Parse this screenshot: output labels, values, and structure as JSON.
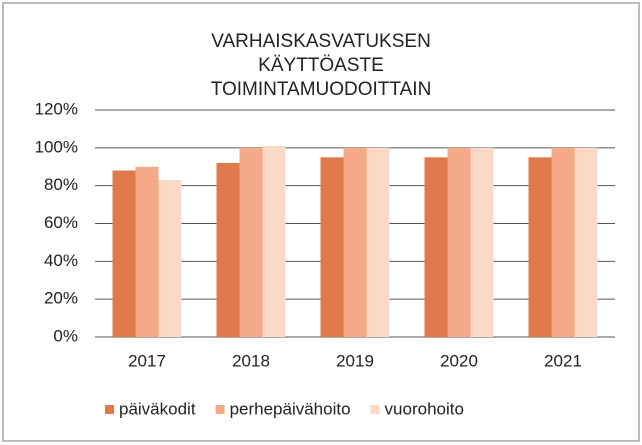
{
  "chart_data": {
    "type": "bar",
    "title": "VARHAISKASVATUKSEN KÄYTTÖASTE TOIMINTAMUODOITTAIN",
    "categories": [
      "2017",
      "2018",
      "2019",
      "2020",
      "2021"
    ],
    "series": [
      {
        "name": "päiväkodit",
        "color": "#e07a4c",
        "values": [
          88,
          92,
          95,
          95,
          95
        ]
      },
      {
        "name": "perhepäivähoito",
        "color": "#f4a988",
        "values": [
          90,
          100,
          100,
          100,
          100
        ]
      },
      {
        "name": "vuorohoito",
        "color": "#f9d8c4",
        "values": [
          83,
          101,
          100,
          100,
          100
        ]
      }
    ],
    "ylim": [
      0,
      120
    ],
    "yticks": [
      {
        "value": 0,
        "label": "0%"
      },
      {
        "value": 20,
        "label": "20%"
      },
      {
        "value": 40,
        "label": "40%"
      },
      {
        "value": 60,
        "label": "60%"
      },
      {
        "value": 80,
        "label": "80%"
      },
      {
        "value": 100,
        "label": "100%"
      },
      {
        "value": 120,
        "label": "120%"
      }
    ],
    "grid": true,
    "legend": "bottom"
  }
}
